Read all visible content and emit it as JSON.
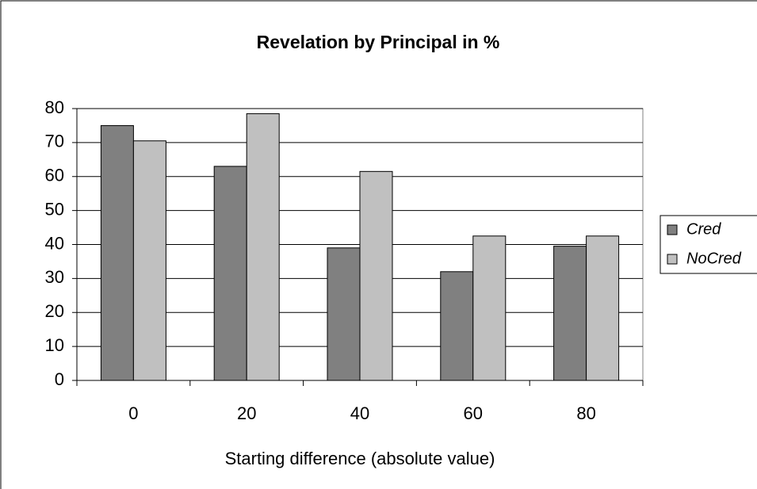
{
  "chart_data": {
    "type": "bar",
    "title": "Revelation by Principal in %",
    "xlabel": "Starting difference (absolute value)",
    "categories": [
      "0",
      "20",
      "40",
      "60",
      "80"
    ],
    "series": [
      {
        "name": "Cred",
        "color": "#808080",
        "values": [
          75,
          63,
          39,
          32,
          39.5
        ]
      },
      {
        "name": "NoCred",
        "color": "#c0c0c0",
        "values": [
          70.5,
          78.5,
          61.5,
          42.5,
          42.5
        ]
      }
    ],
    "ylim": [
      0,
      80
    ],
    "yticks": [
      0,
      10,
      20,
      30,
      40,
      50,
      60,
      70,
      80
    ],
    "grid": true,
    "legend": "right"
  }
}
